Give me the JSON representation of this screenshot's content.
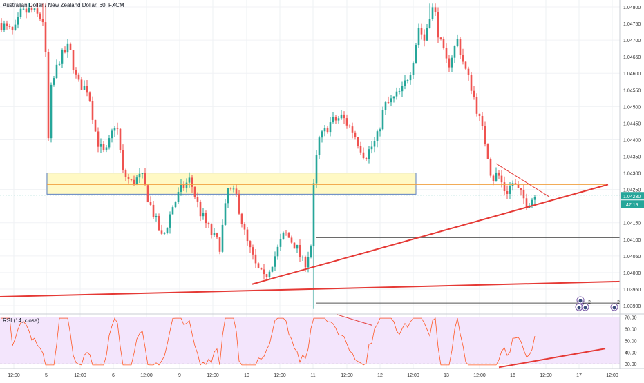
{
  "chart_data": {
    "type": "candlestick",
    "title": "Australian Dollar / New Zealand Dollar, 60, FXCM",
    "price_axis": {
      "ticks": [
        1.048,
        1.047,
        1.046,
        1.045,
        1.044,
        1.043,
        1.0425,
        1.0415,
        1.041,
        1.0405,
        1.04,
        1.0395,
        1.039
      ],
      "tick_labels": [
        "1.04800",
        "1.04700",
        "1.04600",
        "1.04500",
        "1.04400",
        "1.04300",
        "1.04250",
        "1.04150",
        "1.04100",
        "1.04050",
        "1.04000",
        "1.03950",
        "1.03900"
      ],
      "partial_ticks": [
        1.0475,
        1.0465,
        1.0455,
        1.0445,
        1.0435
      ],
      "partial_tick_labels": [
        "1.04750",
        "1.04650",
        "1.04550",
        "1.04450",
        "1.04350"
      ],
      "current_price": "1.04230",
      "countdown": "47:19"
    },
    "x_axis": {
      "labels": [
        "12:00",
        "5",
        "12:00",
        "6",
        "12:00",
        "9",
        "12:00",
        "10",
        "12:00",
        "11",
        "12:00",
        "12",
        "12:00",
        "13",
        "12:00",
        "16",
        "12:00",
        "17",
        "12:00"
      ]
    },
    "rsi": {
      "label": "RSI (14, close)",
      "tick_labels": [
        "70.00",
        "60.00",
        "50.00",
        "40.00",
        "30.00"
      ],
      "ticks": [
        70,
        60,
        50,
        40,
        30
      ],
      "ylim": [
        26,
        72
      ],
      "upper_band": 70,
      "lower_band": 30
    },
    "event_badges": [
      "2",
      "2",
      "2"
    ],
    "colors": {
      "up": "#26a69a",
      "down": "#ef5350",
      "trendline": "#e53935",
      "zone_fill": "#fff9c4",
      "zone_border": "#5b7fbf",
      "rsi_line": "#ff5722",
      "rsi_fill": "#f3e5fc",
      "price_badge": "#26a69a"
    }
  }
}
